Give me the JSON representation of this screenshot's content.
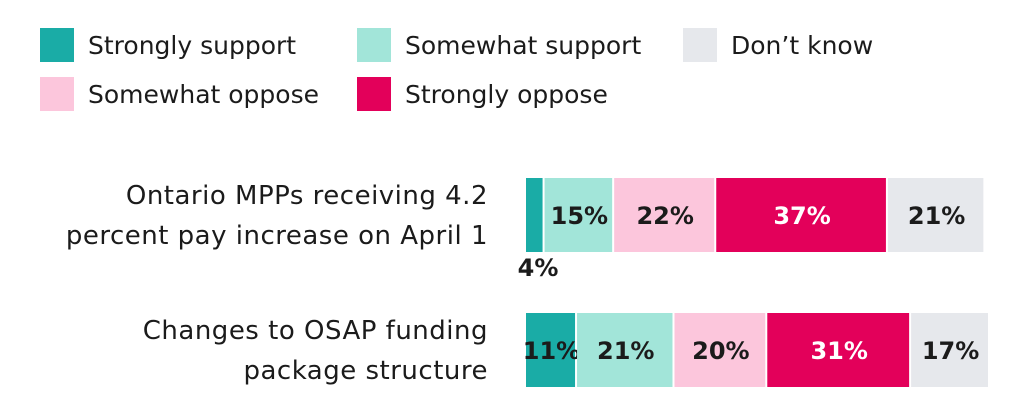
{
  "chart_data": {
    "type": "stacked-bar-horizontal",
    "categories": [
      "Ontario MPPs receiving 4.2 percent pay increase on April 1",
      "Changes to OSAP funding package structure"
    ],
    "xlim": [
      0,
      100
    ],
    "series": [
      {
        "name": "Strongly support",
        "color": "#1aaca6",
        "label_color": "#1b1b1b",
        "values": [
          4,
          11
        ],
        "value_labels": [
          "4%",
          "11%"
        ]
      },
      {
        "name": "Somewhat support",
        "color": "#a2e5d9",
        "label_color": "#1b1b1b",
        "values": [
          15,
          21
        ],
        "value_labels": [
          "15%",
          "21%"
        ]
      },
      {
        "name": "Somewhat oppose",
        "color": "#fcc6dc",
        "label_color": "#1b1b1b",
        "values": [
          22,
          20
        ],
        "value_labels": [
          "22%",
          "20%"
        ]
      },
      {
        "name": "Strongly oppose",
        "color": "#e3005a",
        "label_color": "#ffffff",
        "values": [
          37,
          31
        ],
        "value_labels": [
          "37%",
          "31%"
        ]
      },
      {
        "name": "Don’t know",
        "color": "#e6e8ec",
        "label_color": "#1b1b1b",
        "values": [
          21,
          17
        ],
        "value_labels": [
          "21%",
          "17%"
        ]
      }
    ]
  }
}
